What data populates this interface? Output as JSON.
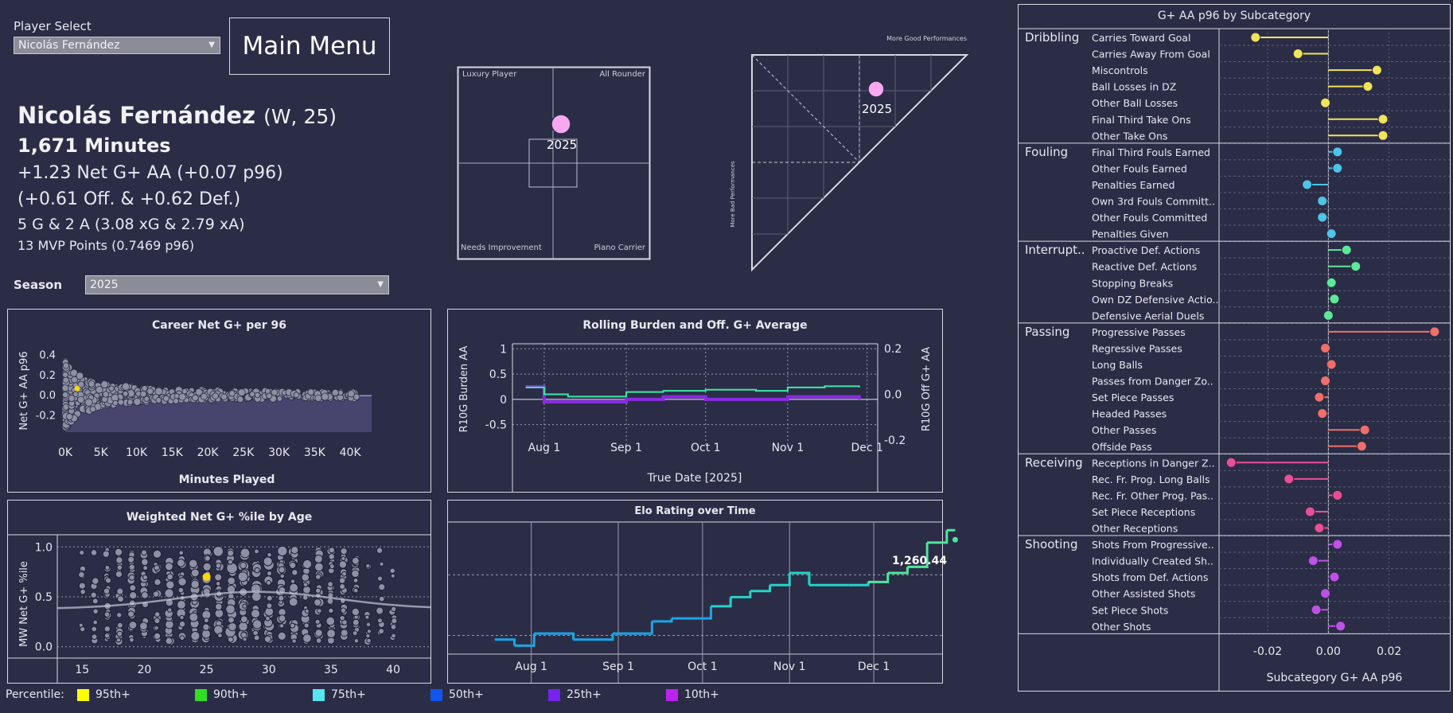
{
  "player_select": {
    "label": "Player Select",
    "value": "Nicolás Fernández"
  },
  "main_menu": "Main Menu",
  "player": {
    "name": "Nicolás Fernández",
    "meta": "(W, 25)",
    "minutes": "1,671 Minutes",
    "net": "+1.23 Net G+ AA (+0.07 p96)",
    "split": "(+0.61 Off. & +0.62 Def.)",
    "goals": "5 G & 2 A (3.08 xG & 2.79 xA)",
    "mvp": "13 MVP Points (0.7469 p96)"
  },
  "season": {
    "label": "Season",
    "value": "2025"
  },
  "quad": {
    "tl": "Luxury Player",
    "tr": "All Rounder",
    "bl": "Needs Improvement",
    "br": "Piano Carrier",
    "point_label": "2025",
    "point_color": "#f7a8f0"
  },
  "triangle": {
    "top_label": "More Good Performances",
    "left_label": "More Bad Performances",
    "point_label": "2025"
  },
  "career": {
    "title": "Career Net G+ per 96",
    "xlabel": "Minutes Played",
    "ylabel": "Net G+ AA p96",
    "xticks": [
      "0K",
      "5K",
      "10K",
      "15K",
      "20K",
      "25K",
      "30K",
      "35K",
      "40K"
    ],
    "yticks": [
      "-0.2",
      "0.0",
      "0.2",
      "0.4"
    ]
  },
  "rolling": {
    "title": "Rolling Burden and Off. G+ Average",
    "ylabel_left": "R10G Burden AA",
    "ylabel_right": "R10G Off G+ AA",
    "xlabel": "True Date [2025]",
    "xticks": [
      "Aug 1",
      "Sep 1",
      "Oct 1",
      "Nov 1",
      "Dec 1"
    ],
    "yticks_left": [
      "1",
      "0.5",
      "0",
      "-0.5"
    ],
    "yticks_right": [
      "0.2",
      "0.0",
      "-0.2"
    ]
  },
  "age": {
    "title": "Weighted Net G+ %ile by Age",
    "ylabel": "MW Net G+ %ile",
    "xticks": [
      "15",
      "20",
      "25",
      "30",
      "35",
      "40"
    ],
    "yticks": [
      "1.0",
      "0.5",
      "0.0"
    ]
  },
  "elo": {
    "title": "Elo Rating over Time",
    "last_label": "1,260.44",
    "xticks": [
      "Aug 1",
      "Sep 1",
      "Oct 1",
      "Nov 1",
      "Dec 1"
    ]
  },
  "percentile": {
    "label": "Percentile:",
    "items": [
      {
        "name": "95th+",
        "color": "#ffff00"
      },
      {
        "name": "90th+",
        "color": "#33dd22"
      },
      {
        "name": "75th+",
        "color": "#55e6f0"
      },
      {
        "name": "50th+",
        "color": "#1155ee"
      },
      {
        "name": "25th+",
        "color": "#7722ee"
      },
      {
        "name": "10th+",
        "color": "#bb22ee"
      }
    ]
  },
  "subcat": {
    "title": "G+ AA p96 by Subcategory",
    "xlabel": "Subcategory G+ AA p96",
    "xticks": [
      "-0.02",
      "0.00",
      "0.02"
    ]
  },
  "chart_data": [
    {
      "type": "scatter",
      "title": "Career Net G+ per 96",
      "xlabel": "Minutes Played",
      "ylabel": "Net G+ AA p96",
      "xlim": [
        0,
        43000
      ],
      "ylim": [
        -0.3,
        0.5
      ],
      "highlight": {
        "x": 1671,
        "y": 0.07,
        "color": "#ffd700"
      }
    },
    {
      "type": "line",
      "title": "Rolling Burden and Off. G+ Average",
      "xlabel": "True Date [2025]",
      "x": [
        "2025-07-25",
        "2025-08-01",
        "2025-08-10",
        "2025-09-01",
        "2025-09-15",
        "2025-10-01",
        "2025-10-20",
        "2025-11-01",
        "2025-11-15",
        "2025-11-28"
      ],
      "series": [
        {
          "name": "R10G Burden AA",
          "axis": "left",
          "color": "#8a2be2",
          "values": [
            0.25,
            -0.05,
            -0.05,
            0.0,
            0.05,
            0.0,
            0.0,
            0.05,
            0.05,
            0.0
          ]
        },
        {
          "name": "R10G Off G+ AA",
          "axis": "right",
          "color": "#3ee8a8",
          "values": [
            0.03,
            0.0,
            -0.01,
            0.01,
            0.015,
            0.02,
            0.015,
            0.03,
            0.035,
            0.03
          ]
        }
      ],
      "ylim_left": [
        -0.9,
        1.1
      ],
      "ylim_right": [
        -0.22,
        0.22
      ]
    },
    {
      "type": "scatter",
      "title": "Weighted Net G+ %ile by Age",
      "ylabel": "MW Net G+ %ile",
      "xlim": [
        13,
        43
      ],
      "ylim": [
        -0.05,
        1.05
      ],
      "highlight": {
        "x": 25,
        "y": 0.7,
        "color": "#ffd700"
      }
    },
    {
      "type": "line",
      "title": "Elo Rating over Time",
      "x": [
        "2025-07-19",
        "2025-07-26",
        "2025-08-02",
        "2025-08-16",
        "2025-08-23",
        "2025-08-30",
        "2025-09-13",
        "2025-09-20",
        "2025-09-27",
        "2025-10-04",
        "2025-10-11",
        "2025-10-18",
        "2025-10-25",
        "2025-11-01",
        "2025-11-08",
        "2025-11-22",
        "2025-11-29",
        "2025-12-06",
        "2025-12-13",
        "2025-12-20",
        "2025-12-27",
        "2025-12-30"
      ],
      "values": [
        1080,
        1070,
        1090,
        1080,
        1080,
        1090,
        1110,
        1115,
        1115,
        1135,
        1150,
        1160,
        1170,
        1190,
        1170,
        1170,
        1175,
        1190,
        1200,
        1240,
        1260.44,
        1260.44
      ],
      "ylim": [
        1060,
        1270
      ]
    },
    {
      "type": "bar",
      "title": "G+ AA p96 by Subcategory",
      "xlabel": "Subcategory G+ AA p96",
      "xlim": [
        -0.036,
        0.04
      ],
      "groups": [
        {
          "name": "Dribbling",
          "color": "#f0e45a",
          "items": [
            {
              "label": "Carries Toward Goal",
              "value": -0.024
            },
            {
              "label": "Carries Away From Goal",
              "value": -0.01
            },
            {
              "label": "Miscontrols",
              "value": 0.016
            },
            {
              "label": "Ball Losses in DZ",
              "value": 0.013
            },
            {
              "label": "Other Ball Losses",
              "value": -0.001
            },
            {
              "label": "Final Third Take Ons",
              "value": 0.018
            },
            {
              "label": "Other Take Ons",
              "value": 0.018
            }
          ]
        },
        {
          "name": "Fouling",
          "color": "#4fc3e8",
          "items": [
            {
              "label": "Final Third Fouls Earned",
              "value": 0.003
            },
            {
              "label": "Other Fouls Earned",
              "value": 0.003
            },
            {
              "label": "Penalties Earned",
              "value": -0.007
            },
            {
              "label": "Own 3rd Fouls Committ..",
              "value": -0.002
            },
            {
              "label": "Other Fouls Committed",
              "value": -0.002
            },
            {
              "label": "Penalties Given",
              "value": 0.001
            }
          ]
        },
        {
          "name": "Interrupt..",
          "color": "#5ee89a",
          "items": [
            {
              "label": "Proactive Def. Actions",
              "value": 0.006
            },
            {
              "label": "Reactive Def. Actions",
              "value": 0.009
            },
            {
              "label": "Stopping Breaks",
              "value": 0.001
            },
            {
              "label": "Own DZ Defensive Actio..",
              "value": 0.002
            },
            {
              "label": "Defensive Aerial Duels",
              "value": 0.0
            }
          ]
        },
        {
          "name": "Passing",
          "color": "#f06f6a",
          "items": [
            {
              "label": "Progressive Passes",
              "value": 0.035
            },
            {
              "label": "Regressive Passes",
              "value": -0.001
            },
            {
              "label": "Long Balls",
              "value": 0.001
            },
            {
              "label": "Passes from Danger Zo..",
              "value": -0.001
            },
            {
              "label": "Set Piece Passes",
              "value": -0.003
            },
            {
              "label": "Headed Passes",
              "value": -0.002
            },
            {
              "label": "Other Passes",
              "value": 0.012
            },
            {
              "label": "Offside Pass",
              "value": 0.011
            }
          ]
        },
        {
          "name": "Receiving",
          "color": "#ea4f96",
          "items": [
            {
              "label": "Receptions in Danger Z..",
              "value": -0.032
            },
            {
              "label": "Rec. Fr. Prog. Long Balls",
              "value": -0.013
            },
            {
              "label": "Rec. Fr. Other Prog. Pas..",
              "value": 0.003
            },
            {
              "label": "Set Piece Receptions",
              "value": -0.006
            },
            {
              "label": "Other Receptions",
              "value": -0.003
            }
          ]
        },
        {
          "name": "Shooting",
          "color": "#c050e6",
          "items": [
            {
              "label": "Shots From Progressive..",
              "value": 0.003
            },
            {
              "label": "Individually Created Sh..",
              "value": -0.005
            },
            {
              "label": "Shots from Def. Actions",
              "value": 0.002
            },
            {
              "label": "Other Assisted Shots",
              "value": -0.001
            },
            {
              "label": "Set Piece Shots",
              "value": -0.004
            },
            {
              "label": "Other Shots",
              "value": 0.004
            }
          ]
        }
      ]
    }
  ]
}
